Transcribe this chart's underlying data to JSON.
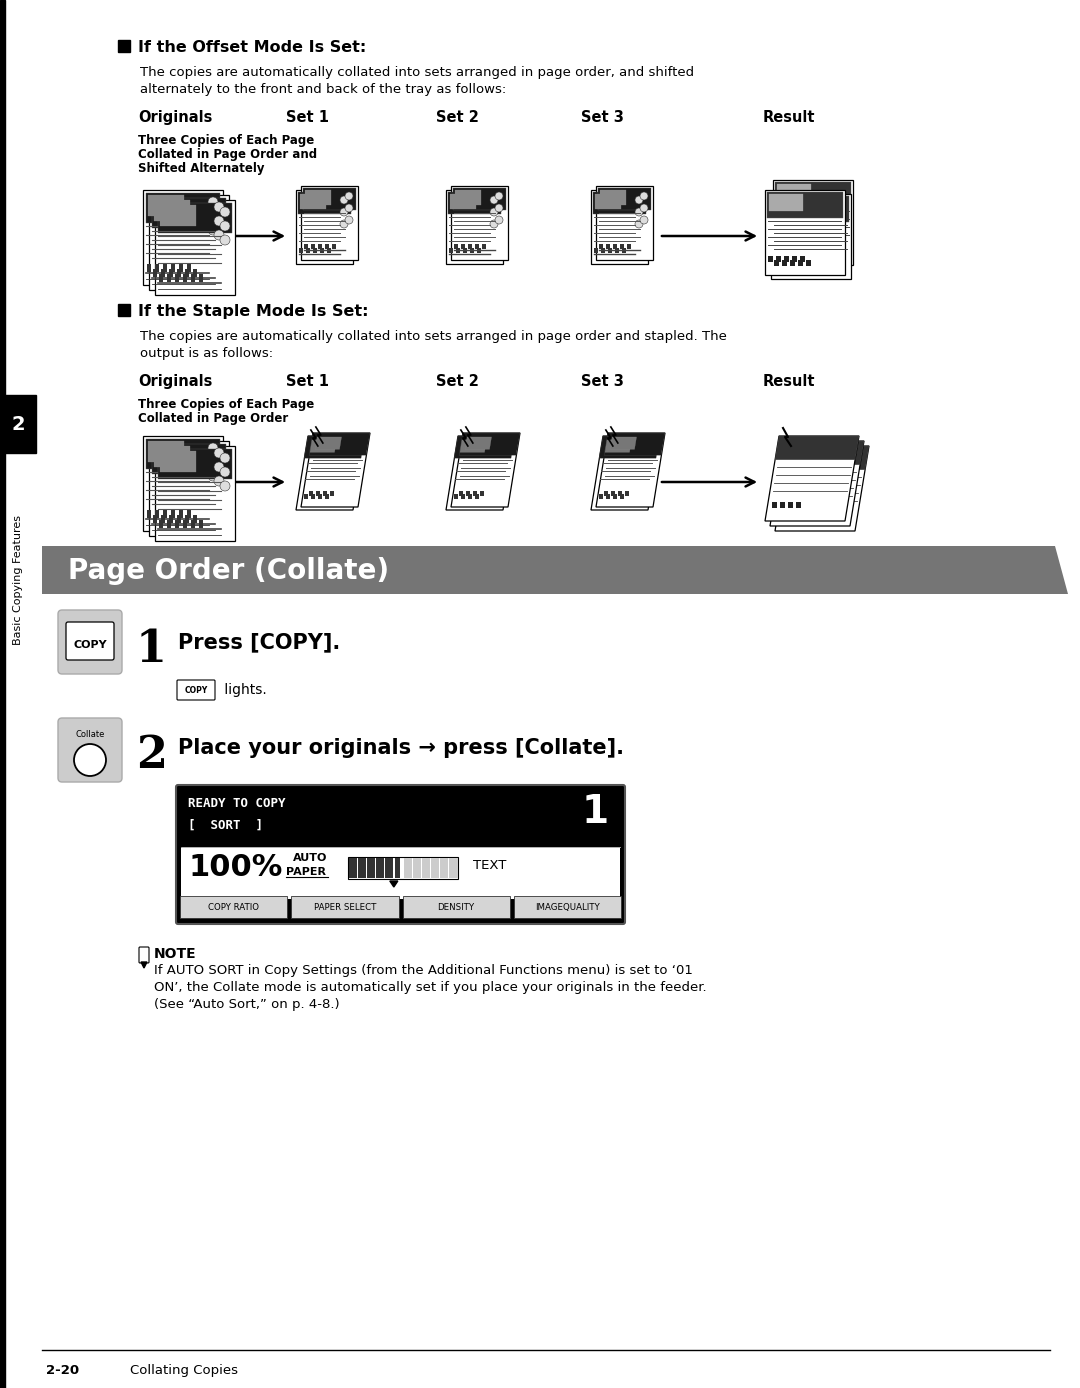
{
  "bg_color": "#ffffff",
  "section1_heading": "If the Offset Mode Is Set:",
  "section1_body_line1": "The copies are automatically collated into sets arranged in page order, and shifted",
  "section1_body_line2": "alternately to the front and back of the tray as follows:",
  "section1_subcaption_line1": "Three Copies of Each Page",
  "section1_subcaption_line2": "Collated in Page Order and",
  "section1_subcaption_line3": "Shifted Alternately",
  "columns": [
    "Originals",
    "Set 1",
    "Set 2",
    "Set 3",
    "Result"
  ],
  "section2_heading": "If the Staple Mode Is Set:",
  "section2_body_line1": "The copies are automatically collated into sets arranged in page order and stapled. The",
  "section2_body_line2": "output is as follows:",
  "section2_subcaption_line1": "Three Copies of Each Page",
  "section2_subcaption_line2": "Collated in Page Order",
  "banner_text": "Page Order (Collate)",
  "banner_bg": "#757575",
  "banner_text_color": "#ffffff",
  "step1_num": "1",
  "step1_main": "Press [COPY].",
  "step1_sub_suffix": " lights.",
  "step2_num": "2",
  "step2_main": "Place your originals → press [Collate].",
  "lcd_line1": "READY TO COPY",
  "lcd_line2": "[  SORT  ]",
  "lcd_1": "1",
  "lcd_100": "100%",
  "lcd_auto": "AUTO",
  "lcd_paper": "PAPER",
  "lcd_text_label": "TEXT",
  "lcd_buttons": [
    "COPY RATIO",
    "PAPER SELECT",
    "DENSITY",
    "IMAGEQUALITY"
  ],
  "note_title": "NOTE",
  "note_line1": "If AUTO SORT in Copy Settings (from the Additional Functions menu) is set to ‘01",
  "note_line2": "ON’, the Collate mode is automatically set if you place your originals in the feeder.",
  "note_line3": "(See “Auto Sort,” on p. 4-8.)",
  "footer_num": "2-20",
  "footer_label": "Collating Copies",
  "sidebar_num": "2",
  "sidebar_text": "Basic Copying Features"
}
